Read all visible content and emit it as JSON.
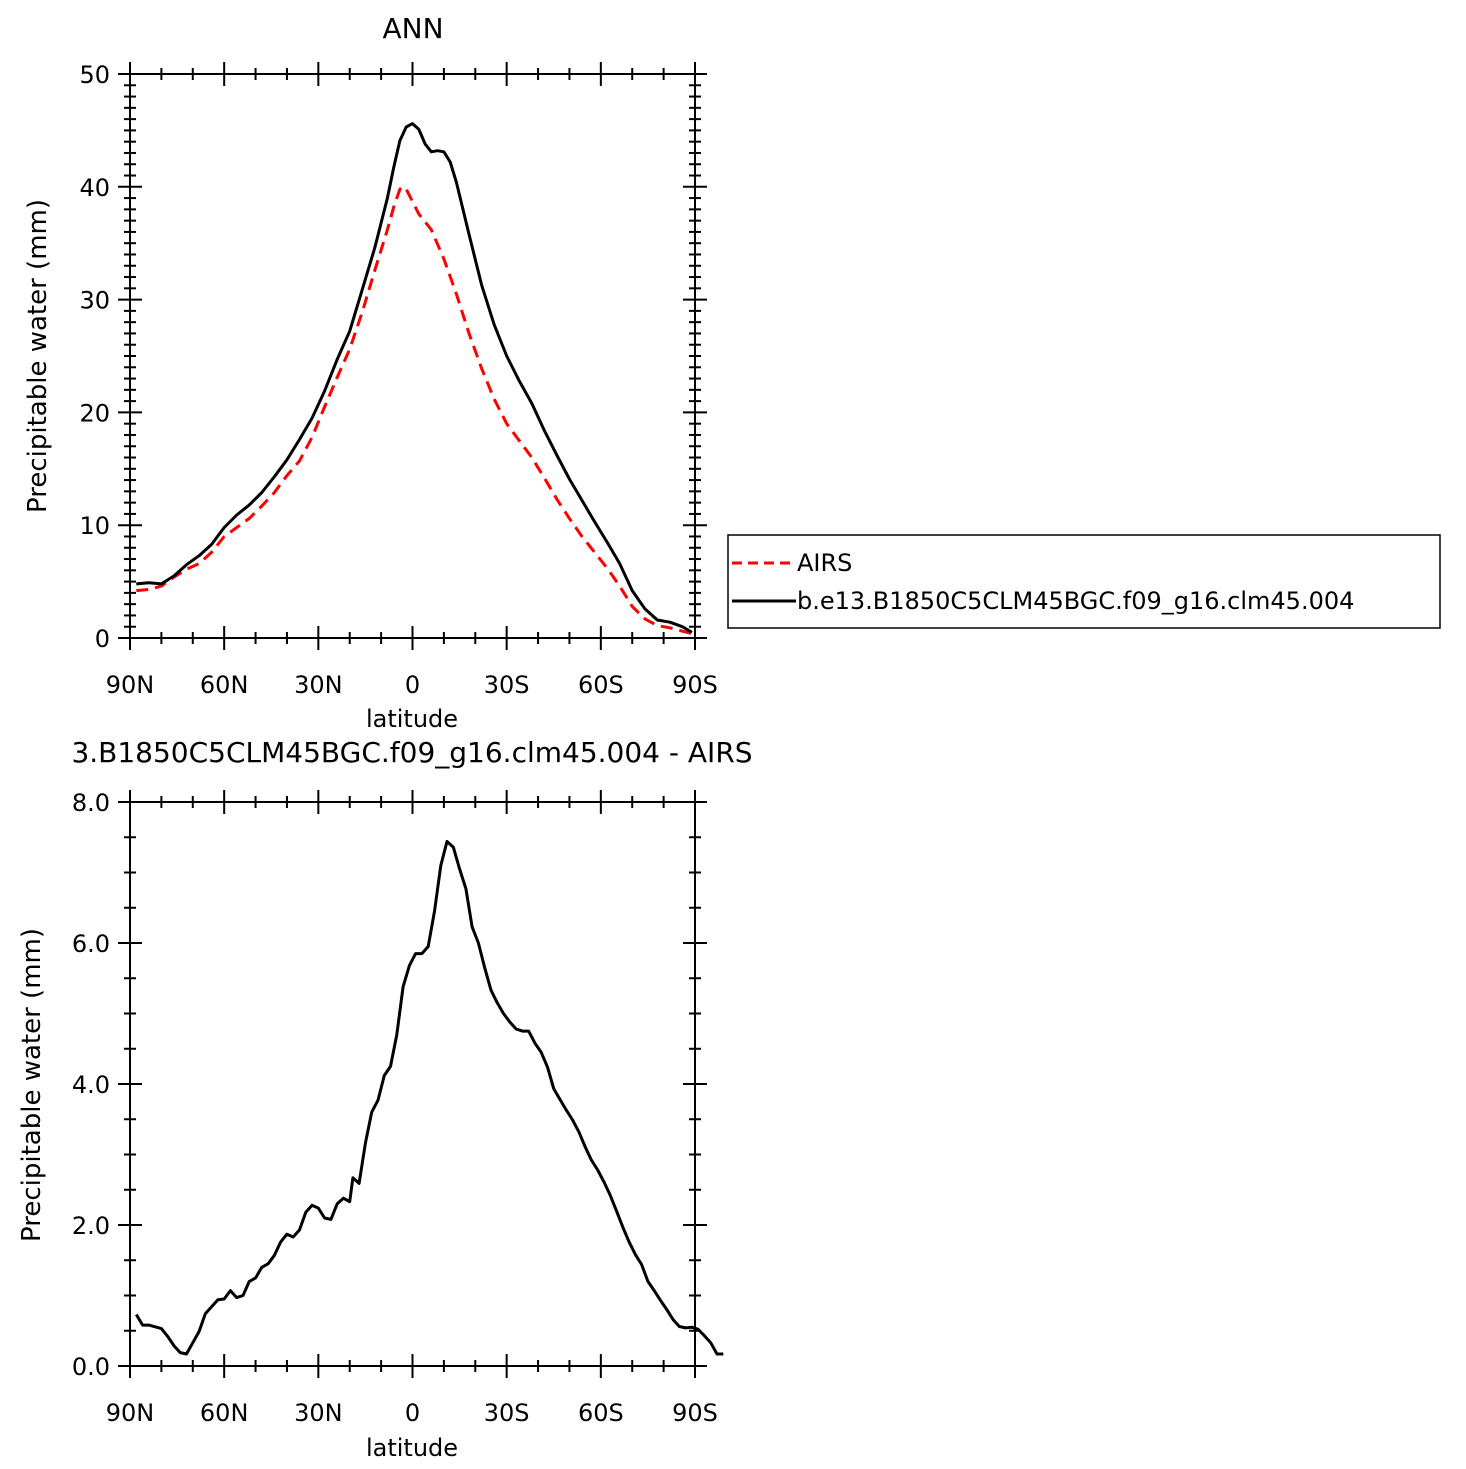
{
  "chart_data": [
    {
      "type": "line",
      "title": "ANN",
      "xlabel": "latitude",
      "ylabel": "Precipitable water (mm)",
      "xlim": [
        90,
        -90
      ],
      "ylim": [
        0,
        50
      ],
      "x_ticks": [
        {
          "value": 90,
          "label": "90N"
        },
        {
          "value": 60,
          "label": "60N"
        },
        {
          "value": 30,
          "label": "30N"
        },
        {
          "value": 0,
          "label": "0"
        },
        {
          "value": -30,
          "label": "30S"
        },
        {
          "value": -60,
          "label": "60S"
        },
        {
          "value": -90,
          "label": "90S"
        }
      ],
      "y_ticks": [
        {
          "value": 0,
          "label": "0"
        },
        {
          "value": 10,
          "label": "10"
        },
        {
          "value": 20,
          "label": "20"
        },
        {
          "value": 30,
          "label": "30"
        },
        {
          "value": 40,
          "label": "40"
        },
        {
          "value": 50,
          "label": "50"
        }
      ],
      "legend_position": "right",
      "series": [
        {
          "name": "AIRS",
          "color": "#ff0000",
          "dash": "dashed",
          "points": [
            [
              88,
              4.2
            ],
            [
              84,
              4.3
            ],
            [
              80,
              4.6
            ],
            [
              76,
              5.4
            ],
            [
              72,
              6.1
            ],
            [
              68,
              6.6
            ],
            [
              64,
              7.6
            ],
            [
              60,
              9.0
            ],
            [
              56,
              9.8
            ],
            [
              52,
              10.6
            ],
            [
              48,
              11.7
            ],
            [
              44,
              12.9
            ],
            [
              40,
              14.4
            ],
            [
              36,
              15.7
            ],
            [
              32,
              17.8
            ],
            [
              28,
              20.5
            ],
            [
              24,
              23.1
            ],
            [
              20,
              25.6
            ],
            [
              16,
              28.9
            ],
            [
              12,
              32.6
            ],
            [
              8,
              36.2
            ],
            [
              6,
              38.2
            ],
            [
              4,
              39.8
            ],
            [
              3,
              40.0
            ],
            [
              2,
              39.8
            ],
            [
              0,
              38.7
            ],
            [
              -2,
              37.6
            ],
            [
              -6,
              36.2
            ],
            [
              -10,
              33.6
            ],
            [
              -14,
              30.5
            ],
            [
              -18,
              27.0
            ],
            [
              -22,
              23.9
            ],
            [
              -26,
              21.2
            ],
            [
              -30,
              19.0
            ],
            [
              -34,
              17.5
            ],
            [
              -38,
              16.0
            ],
            [
              -42,
              14.2
            ],
            [
              -46,
              12.3
            ],
            [
              -50,
              10.6
            ],
            [
              -54,
              9.0
            ],
            [
              -58,
              7.6
            ],
            [
              -62,
              6.2
            ],
            [
              -66,
              4.6
            ],
            [
              -70,
              2.8
            ],
            [
              -74,
              1.7
            ],
            [
              -78,
              1.1
            ],
            [
              -82,
              0.9
            ],
            [
              -86,
              0.6
            ],
            [
              -89,
              0.4
            ]
          ]
        },
        {
          "name": "b.e13.B1850C5CLM45BGC.f09_g16.clm45.004",
          "color": "#000000",
          "dash": "solid",
          "points": [
            [
              88,
              4.8
            ],
            [
              84,
              4.9
            ],
            [
              80,
              4.8
            ],
            [
              76,
              5.5
            ],
            [
              72,
              6.5
            ],
            [
              68,
              7.3
            ],
            [
              64,
              8.3
            ],
            [
              60,
              9.8
            ],
            [
              56,
              10.9
            ],
            [
              52,
              11.8
            ],
            [
              48,
              12.9
            ],
            [
              44,
              14.3
            ],
            [
              40,
              15.8
            ],
            [
              36,
              17.6
            ],
            [
              32,
              19.5
            ],
            [
              28,
              21.9
            ],
            [
              24,
              24.7
            ],
            [
              20,
              27.2
            ],
            [
              16,
              30.9
            ],
            [
              12,
              34.6
            ],
            [
              8,
              39.0
            ],
            [
              6,
              41.7
            ],
            [
              4,
              44.1
            ],
            [
              2,
              45.3
            ],
            [
              0,
              45.6
            ],
            [
              -2,
              45.1
            ],
            [
              -4,
              43.8
            ],
            [
              -6,
              43.1
            ],
            [
              -8,
              43.2
            ],
            [
              -10,
              43.1
            ],
            [
              -12,
              42.2
            ],
            [
              -14,
              40.4
            ],
            [
              -18,
              35.8
            ],
            [
              -22,
              31.3
            ],
            [
              -26,
              27.8
            ],
            [
              -30,
              25.0
            ],
            [
              -34,
              22.8
            ],
            [
              -38,
              20.8
            ],
            [
              -42,
              18.4
            ],
            [
              -46,
              16.2
            ],
            [
              -50,
              14.1
            ],
            [
              -54,
              12.2
            ],
            [
              -58,
              10.3
            ],
            [
              -62,
              8.5
            ],
            [
              -66,
              6.6
            ],
            [
              -70,
              4.2
            ],
            [
              -74,
              2.6
            ],
            [
              -78,
              1.6
            ],
            [
              -82,
              1.4
            ],
            [
              -86,
              1.0
            ],
            [
              -89,
              0.5
            ]
          ]
        }
      ]
    },
    {
      "type": "line",
      "title": "3.B1850C5CLM45BGC.f09_g16.clm45.004 - AIRS",
      "xlabel": "latitude",
      "ylabel": "Precipitable water (mm)",
      "xlim": [
        90,
        -90
      ],
      "ylim": [
        0,
        8
      ],
      "x_ticks": [
        {
          "value": 90,
          "label": "90N"
        },
        {
          "value": 60,
          "label": "60N"
        },
        {
          "value": 30,
          "label": "30N"
        },
        {
          "value": 0,
          "label": "0"
        },
        {
          "value": -30,
          "label": "30S"
        },
        {
          "value": -60,
          "label": "60S"
        },
        {
          "value": -90,
          "label": "90S"
        }
      ],
      "y_ticks": [
        {
          "value": 0,
          "label": "0.0"
        },
        {
          "value": 2,
          "label": "2.0"
        },
        {
          "value": 4,
          "label": "4.0"
        },
        {
          "value": 6,
          "label": "6.0"
        },
        {
          "value": 8,
          "label": "8.0"
        }
      ],
      "series": [
        {
          "color": "#000000",
          "dash": "solid",
          "points": [
            [
              88,
              0.73
            ],
            [
              86,
              0.58
            ],
            [
              84,
              0.58
            ],
            [
              80,
              0.53
            ],
            [
              78,
              0.42
            ],
            [
              76,
              0.29
            ],
            [
              74,
              0.19
            ],
            [
              72,
              0.17
            ],
            [
              70,
              0.33
            ],
            [
              68,
              0.49
            ],
            [
              66,
              0.74
            ],
            [
              64,
              0.84
            ],
            [
              62,
              0.94
            ],
            [
              60,
              0.95
            ],
            [
              58,
              1.07
            ],
            [
              56,
              0.97
            ],
            [
              54,
              1.0
            ],
            [
              52,
              1.2
            ],
            [
              50,
              1.25
            ],
            [
              48,
              1.4
            ],
            [
              46,
              1.45
            ],
            [
              44,
              1.57
            ],
            [
              42,
              1.76
            ],
            [
              40,
              1.87
            ],
            [
              38,
              1.83
            ],
            [
              36,
              1.93
            ],
            [
              34,
              2.18
            ],
            [
              32,
              2.28
            ],
            [
              30,
              2.24
            ],
            [
              28,
              2.1
            ],
            [
              26,
              2.08
            ],
            [
              24,
              2.3
            ],
            [
              22,
              2.38
            ],
            [
              20,
              2.33
            ],
            [
              19,
              2.67
            ],
            [
              17,
              2.59
            ],
            [
              15,
              3.16
            ],
            [
              13,
              3.6
            ],
            [
              11,
              3.77
            ],
            [
              9,
              4.12
            ],
            [
              7,
              4.25
            ],
            [
              5,
              4.7
            ],
            [
              3,
              5.38
            ],
            [
              1,
              5.68
            ],
            [
              -1,
              5.85
            ],
            [
              -3,
              5.85
            ],
            [
              -5,
              5.95
            ],
            [
              -7,
              6.45
            ],
            [
              -9,
              7.1
            ],
            [
              -11,
              7.44
            ],
            [
              -13,
              7.36
            ],
            [
              -15,
              7.05
            ],
            [
              -17,
              6.77
            ],
            [
              -19,
              6.23
            ],
            [
              -21,
              6.0
            ],
            [
              -23,
              5.65
            ],
            [
              -25,
              5.33
            ],
            [
              -27,
              5.15
            ],
            [
              -29,
              5.0
            ],
            [
              -31,
              4.88
            ],
            [
              -33,
              4.78
            ],
            [
              -35,
              4.75
            ],
            [
              -37,
              4.75
            ],
            [
              -39,
              4.58
            ],
            [
              -41,
              4.45
            ],
            [
              -43,
              4.24
            ],
            [
              -45,
              3.93
            ],
            [
              -47,
              3.78
            ],
            [
              -49,
              3.63
            ],
            [
              -51,
              3.49
            ],
            [
              -53,
              3.32
            ],
            [
              -55,
              3.11
            ],
            [
              -57,
              2.92
            ],
            [
              -59,
              2.78
            ],
            [
              -61,
              2.61
            ],
            [
              -63,
              2.42
            ],
            [
              -65,
              2.2
            ],
            [
              -67,
              1.97
            ],
            [
              -69,
              1.76
            ],
            [
              -71,
              1.58
            ],
            [
              -73,
              1.44
            ],
            [
              -75,
              1.2
            ],
            [
              -77,
              1.07
            ],
            [
              -79,
              0.93
            ],
            [
              -81,
              0.8
            ],
            [
              -83,
              0.66
            ],
            [
              -85,
              0.56
            ],
            [
              -87,
              0.54
            ],
            [
              -89,
              0.55
            ],
            [
              -91,
              0.52
            ],
            [
              -93,
              0.43
            ],
            [
              -95,
              0.33
            ],
            [
              -97,
              0.17
            ],
            [
              -99,
              0.17
            ]
          ]
        }
      ]
    }
  ]
}
